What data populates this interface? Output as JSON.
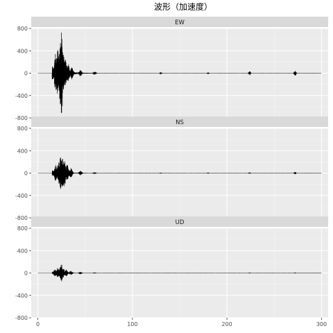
{
  "chart_data": {
    "type": "line",
    "title": "波形（加速度）",
    "xlabel": "",
    "ylabel": "",
    "xlim": [
      -7,
      307
    ],
    "ylim": [
      -800,
      800
    ],
    "x_ticks": [
      0,
      100,
      200,
      300
    ],
    "y_ticks": [
      -800,
      -400,
      0,
      400,
      800
    ],
    "y_tick_labels": [
      "-800",
      "-400",
      "0",
      "400",
      "800"
    ],
    "grid": true,
    "legend": "none",
    "facet_strip_color": "#d9d9d9",
    "panel_background": "#ebebeb",
    "line_color": "#000000",
    "panels": [
      {
        "label": "EW",
        "onset": 15,
        "peaks": [
          [
            19,
            380
          ],
          [
            21,
            -420
          ],
          [
            24,
            680
          ],
          [
            25,
            -760
          ],
          [
            27,
            330
          ],
          [
            29,
            -250
          ],
          [
            32,
            180
          ],
          [
            36,
            -110
          ],
          [
            45,
            60
          ],
          [
            60,
            30
          ]
        ],
        "bursts": [
          [
            130,
            18
          ],
          [
            180,
            15
          ],
          [
            224,
            35
          ],
          [
            272,
            50
          ]
        ]
      },
      {
        "label": "NS",
        "onset": 15,
        "peaks": [
          [
            19,
            150
          ],
          [
            22,
            -200
          ],
          [
            24,
            290
          ],
          [
            26,
            -280
          ],
          [
            28,
            240
          ],
          [
            31,
            -150
          ],
          [
            35,
            90
          ],
          [
            45,
            40
          ],
          [
            60,
            15
          ]
        ],
        "bursts": [
          [
            130,
            8
          ],
          [
            180,
            8
          ],
          [
            224,
            12
          ],
          [
            272,
            20
          ]
        ]
      },
      {
        "label": "UD",
        "onset": 15,
        "peaks": [
          [
            18,
            60
          ],
          [
            21,
            -90
          ],
          [
            24,
            110
          ],
          [
            25,
            -160
          ],
          [
            27,
            80
          ],
          [
            30,
            -60
          ],
          [
            35,
            40
          ],
          [
            45,
            20
          ],
          [
            60,
            8
          ]
        ],
        "bursts": [
          [
            224,
            6
          ],
          [
            272,
            6
          ]
        ]
      }
    ]
  }
}
